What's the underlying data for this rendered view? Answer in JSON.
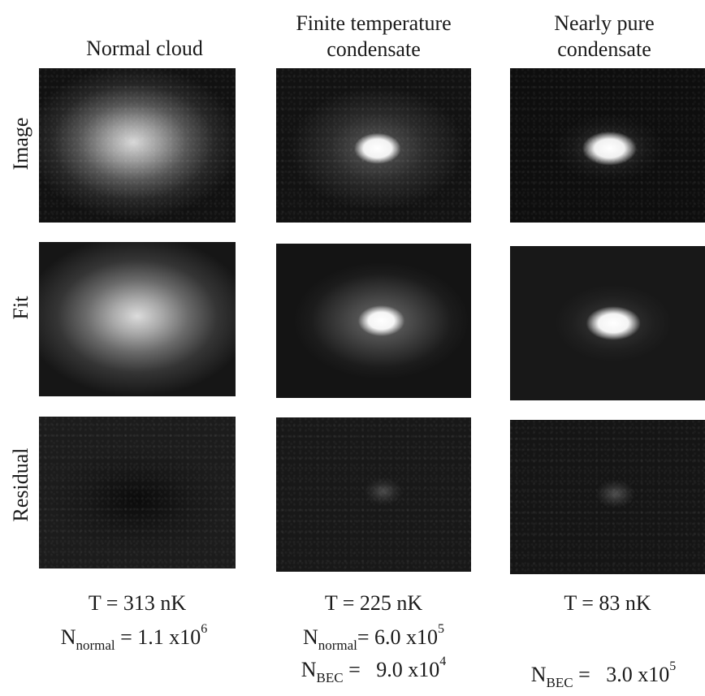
{
  "columns": [
    {
      "title_line1": "Normal cloud",
      "title_line2": ""
    },
    {
      "title_line1": "Finite temperature",
      "title_line2": "condensate"
    },
    {
      "title_line1": "Nearly pure",
      "title_line2": "condensate"
    }
  ],
  "rows": {
    "image": "Image",
    "fit": "Fit",
    "residual": "Residual"
  },
  "captions": {
    "col1": {
      "T": "T = 313 nK",
      "n1_label": "N",
      "n1_sub": "normal",
      "n1_val": " = 1.1 x10",
      "n1_exp": "6"
    },
    "col2": {
      "T": "T = 225 nK",
      "n1_label": "N",
      "n1_sub": "normal",
      "n1_val": "= 6.0 x10",
      "n1_exp": "5",
      "n2_label": "N",
      "n2_sub": "BEC",
      "n2_val": " =   9.0 x10",
      "n2_exp": "4"
    },
    "col3": {
      "T": "T = 83 nK",
      "n2_label": "N",
      "n2_sub": "BEC",
      "n2_val": " =   3.0 x10",
      "n2_exp": "5"
    }
  }
}
